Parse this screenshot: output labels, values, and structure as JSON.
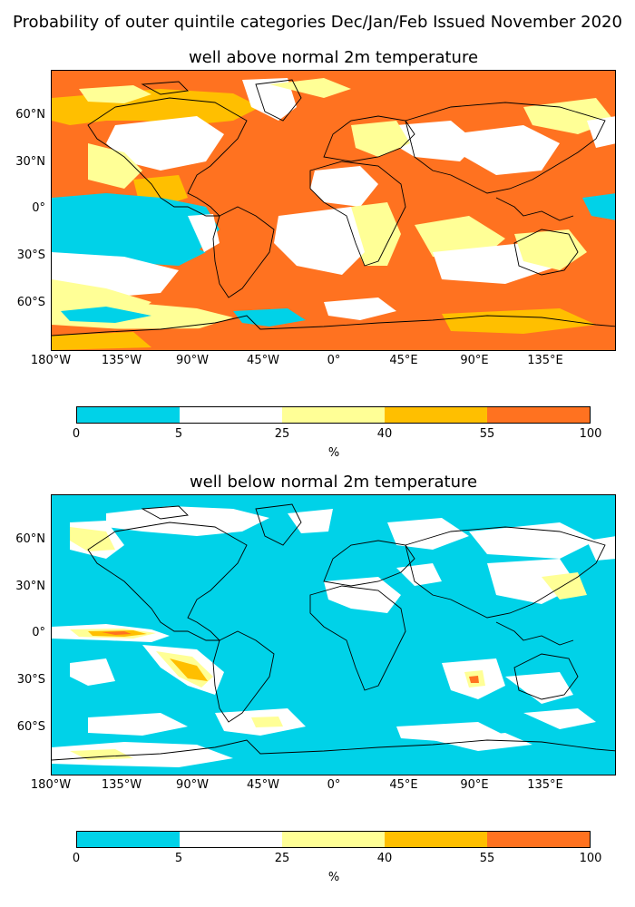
{
  "figure": {
    "title": "Probability of outer quintile categories Dec/Jan/Feb Issued November 2020"
  },
  "maps": [
    {
      "title": "well above normal 2m temperature",
      "lat_ticks": [
        "60°N",
        "30°N",
        "0°",
        "30°S",
        "60°S"
      ],
      "lon_ticks": [
        "180°W",
        "135°W",
        "90°W",
        "45°W",
        "0°",
        "45°E",
        "90°E",
        "135°E"
      ],
      "dominant_category": "55-100",
      "colorbar": {
        "ticks": [
          "0",
          "5",
          "25",
          "40",
          "55",
          "100"
        ],
        "unit": "%",
        "colors": [
          "#00d2e8",
          "#ffffff",
          "#ffff96",
          "#ffbf00",
          "#ff7220"
        ]
      }
    },
    {
      "title": "well below normal 2m temperature",
      "lat_ticks": [
        "60°N",
        "30°N",
        "0°",
        "30°S",
        "60°S"
      ],
      "lon_ticks": [
        "180°W",
        "135°W",
        "90°W",
        "45°W",
        "0°",
        "45°E",
        "90°E",
        "135°E"
      ],
      "dominant_category": "0-5",
      "colorbar": {
        "ticks": [
          "0",
          "5",
          "25",
          "40",
          "55",
          "100"
        ],
        "unit": "%",
        "colors": [
          "#00d2e8",
          "#ffffff",
          "#ffff96",
          "#ffbf00",
          "#ff7220"
        ]
      }
    }
  ]
}
